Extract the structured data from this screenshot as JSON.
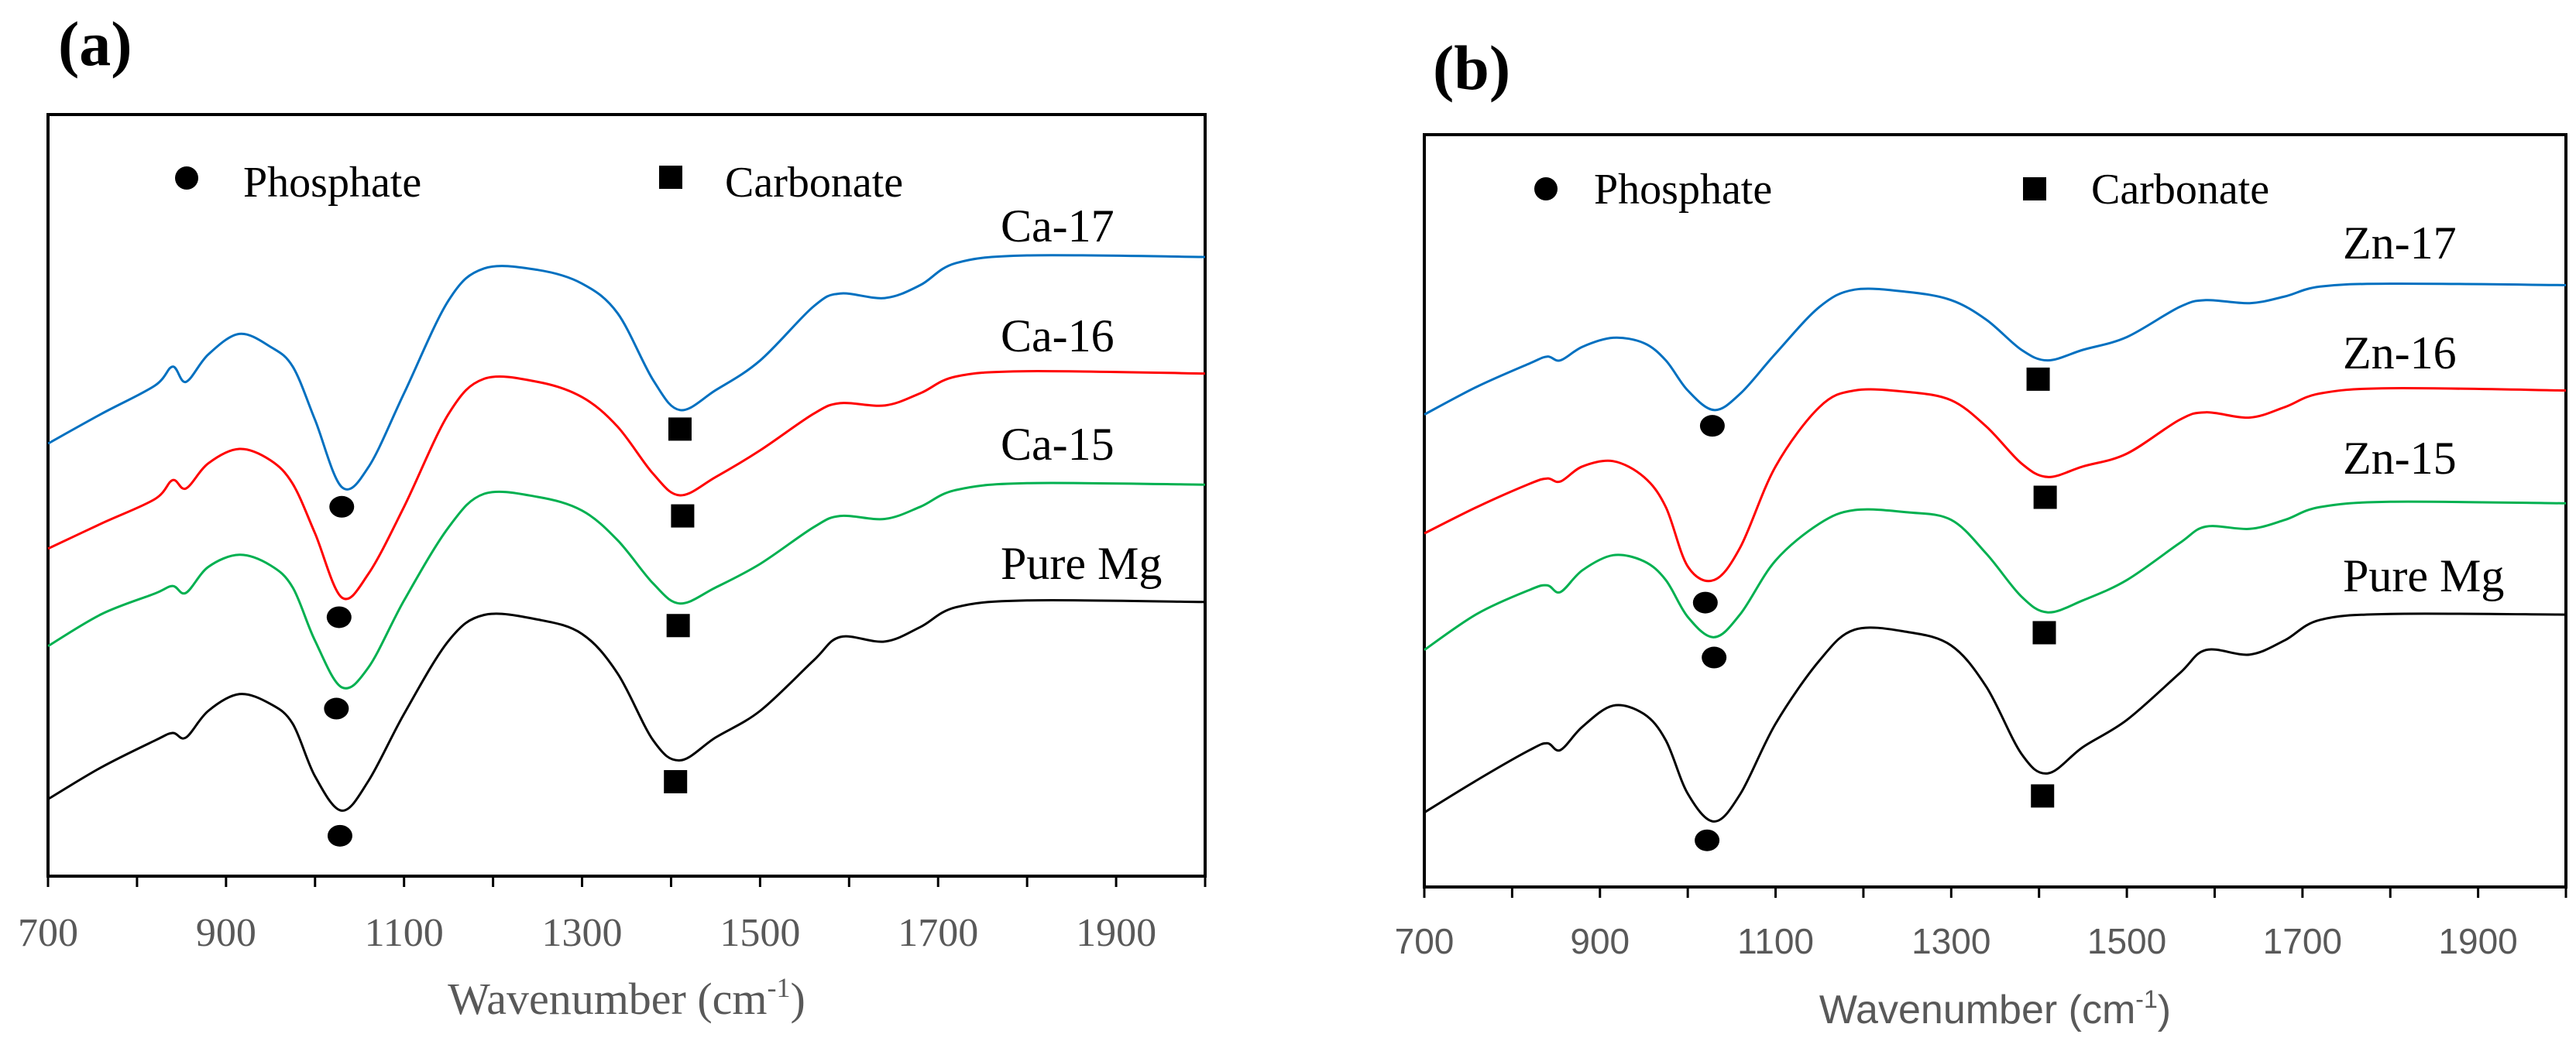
{
  "chart_data": [
    {
      "type": "line",
      "panel_label": "(a)",
      "title": "",
      "xlabel": "Wavenumber (cm",
      "xlabel_sup": "-1",
      "xlabel_close": ")",
      "ylabel": "",
      "xlim": [
        700,
        2000
      ],
      "ylim": [
        0,
        100
      ],
      "xticks": [
        700,
        800,
        900,
        1000,
        1100,
        1200,
        1300,
        1400,
        1500,
        1600,
        1700,
        1800,
        1900,
        2000
      ],
      "xtick_labels": [
        "700",
        "900",
        "1100",
        "1300",
        "1500",
        "1700",
        "1900"
      ],
      "grid": false,
      "legend": {
        "phosphate": "Phosphate",
        "carbonate": "Carbonate",
        "placement": "top"
      },
      "x": [
        700,
        760,
        820,
        840,
        855,
        880,
        915,
        950,
        975,
        1000,
        1030,
        1060,
        1100,
        1150,
        1190,
        1250,
        1300,
        1340,
        1380,
        1410,
        1450,
        1500,
        1560,
        1590,
        1640,
        1680,
        1720,
        1800,
        2000
      ],
      "series": [
        {
          "name": "Ca-17",
          "color": "#0070C0",
          "values": [
            56.8,
            60.7,
            64.4,
            66.9,
            64.9,
            68.5,
            71.2,
            69.5,
            66.9,
            59.9,
            51.1,
            53.7,
            63.4,
            75.6,
            79.8,
            79.6,
            77.8,
            73.9,
            65.1,
            61.2,
            63.8,
            67.7,
            74.8,
            76.5,
            75.9,
            77.6,
            80.5,
            81.5,
            81.3
          ]
        },
        {
          "name": "Ca-16",
          "color": "#FF0000",
          "values": [
            43.0,
            46.3,
            49.5,
            52.0,
            50.9,
            54.2,
            56.1,
            54.6,
            51.5,
            45.0,
            36.6,
            39.7,
            48.5,
            60.7,
            65.3,
            64.9,
            62.9,
            59.0,
            52.8,
            50.0,
            52.4,
            55.9,
            60.7,
            62.1,
            61.8,
            63.4,
            65.6,
            66.3,
            66.0
          ]
        },
        {
          "name": "Ca-15",
          "color": "#00B050",
          "values": [
            30.2,
            34.4,
            37.1,
            38.1,
            37.2,
            40.6,
            42.2,
            40.8,
            37.9,
            30.9,
            24.8,
            27.4,
            36.2,
            45.8,
            50.2,
            49.8,
            48.0,
            44.1,
            38.4,
            35.8,
            37.9,
            41.0,
            45.8,
            47.3,
            46.9,
            48.5,
            50.7,
            51.6,
            51.4
          ]
        },
        {
          "name": "Pure Mg",
          "color": "#000000",
          "values": [
            10.1,
            14.3,
            17.8,
            18.8,
            18.2,
            21.7,
            23.9,
            22.6,
            20.0,
            13.1,
            8.6,
            12.5,
            21.3,
            30.9,
            34.3,
            33.7,
            31.8,
            26.6,
            17.8,
            15.2,
            18.2,
            21.7,
            28.3,
            31.4,
            30.8,
            32.7,
            35.3,
            36.2,
            36.0
          ]
        }
      ],
      "markers": {
        "phosphate": [
          [
            1030,
            48.5
          ],
          [
            1027,
            34.0
          ],
          [
            1024,
            22.0
          ],
          [
            1028,
            5.3
          ]
        ],
        "carbonate": [
          [
            1410,
            58.7
          ],
          [
            1413,
            47.3
          ],
          [
            1408,
            32.9
          ],
          [
            1405,
            12.4
          ]
        ]
      }
    },
    {
      "type": "line",
      "panel_label": "(b)",
      "title": "",
      "xlabel": "Wavenumber (cm",
      "xlabel_sup": "-1",
      "xlabel_close": ")",
      "ylabel": "",
      "xlim": [
        700,
        2000
      ],
      "ylim": [
        0,
        100
      ],
      "xticks": [
        700,
        800,
        900,
        1000,
        1100,
        1200,
        1300,
        1400,
        1500,
        1600,
        1700,
        1800,
        1900,
        2000
      ],
      "xtick_labels": [
        "700",
        "900",
        "1100",
        "1300",
        "1500",
        "1700",
        "1900"
      ],
      "grid": false,
      "legend": {
        "phosphate": "Phosphate",
        "carbonate": "Carbonate",
        "placement": "top"
      },
      "x": [
        700,
        760,
        820,
        840,
        855,
        880,
        915,
        950,
        975,
        1000,
        1030,
        1060,
        1100,
        1150,
        1190,
        1250,
        1300,
        1340,
        1380,
        1410,
        1450,
        1500,
        1560,
        1590,
        1640,
        1680,
        1720,
        1800,
        2000
      ],
      "series": [
        {
          "name": "Zn-17",
          "color": "#0070C0",
          "values": [
            62.8,
            66.5,
            69.6,
            70.5,
            70.0,
            71.8,
            73.0,
            72.3,
            70.0,
            66.0,
            63.4,
            65.6,
            70.9,
            77.1,
            79.4,
            79.1,
            78.0,
            75.4,
            71.4,
            70.0,
            71.4,
            73.1,
            77.1,
            78.0,
            77.6,
            78.5,
            79.8,
            80.2,
            80.0
          ]
        },
        {
          "name": "Zn-16",
          "color": "#FF0000",
          "values": [
            47.0,
            50.5,
            53.6,
            54.3,
            53.9,
            55.9,
            56.6,
            54.5,
            50.5,
            42.6,
            40.8,
            45.2,
            55.9,
            63.8,
            66.0,
            65.8,
            64.7,
            61.2,
            56.3,
            54.5,
            55.9,
            57.6,
            62.1,
            63.1,
            62.4,
            63.8,
            65.6,
            66.3,
            66.0
          ]
        },
        {
          "name": "Zn-15",
          "color": "#00B050",
          "values": [
            31.5,
            36.3,
            39.5,
            40.1,
            39.2,
            42.1,
            44.1,
            43.3,
            40.8,
            35.9,
            33.2,
            36.3,
            43.4,
            48.3,
            50.1,
            49.8,
            48.8,
            44.3,
            38.6,
            36.5,
            38.1,
            40.8,
            45.7,
            47.9,
            47.6,
            48.8,
            50.5,
            51.2,
            51.0
          ]
        },
        {
          "name": "Pure Mg",
          "color": "#000000",
          "values": [
            9.9,
            14.2,
            18.2,
            19.1,
            18.2,
            21.3,
            24.1,
            23.0,
            19.5,
            12.4,
            8.7,
            12.4,
            21.7,
            30.1,
            34.2,
            33.9,
            32.1,
            26.6,
            17.7,
            15.1,
            18.6,
            22.2,
            28.4,
            31.5,
            30.9,
            32.8,
            35.5,
            36.3,
            36.2
          ]
        }
      ],
      "markers": {
        "phosphate": [
          [
            1028,
            61.3
          ],
          [
            1020,
            37.8
          ],
          [
            1030,
            30.5
          ],
          [
            1022,
            6.2
          ]
        ],
        "carbonate": [
          [
            1399,
            67.5
          ],
          [
            1407,
            51.8
          ],
          [
            1406,
            33.8
          ],
          [
            1404,
            12.1
          ]
        ]
      }
    }
  ]
}
